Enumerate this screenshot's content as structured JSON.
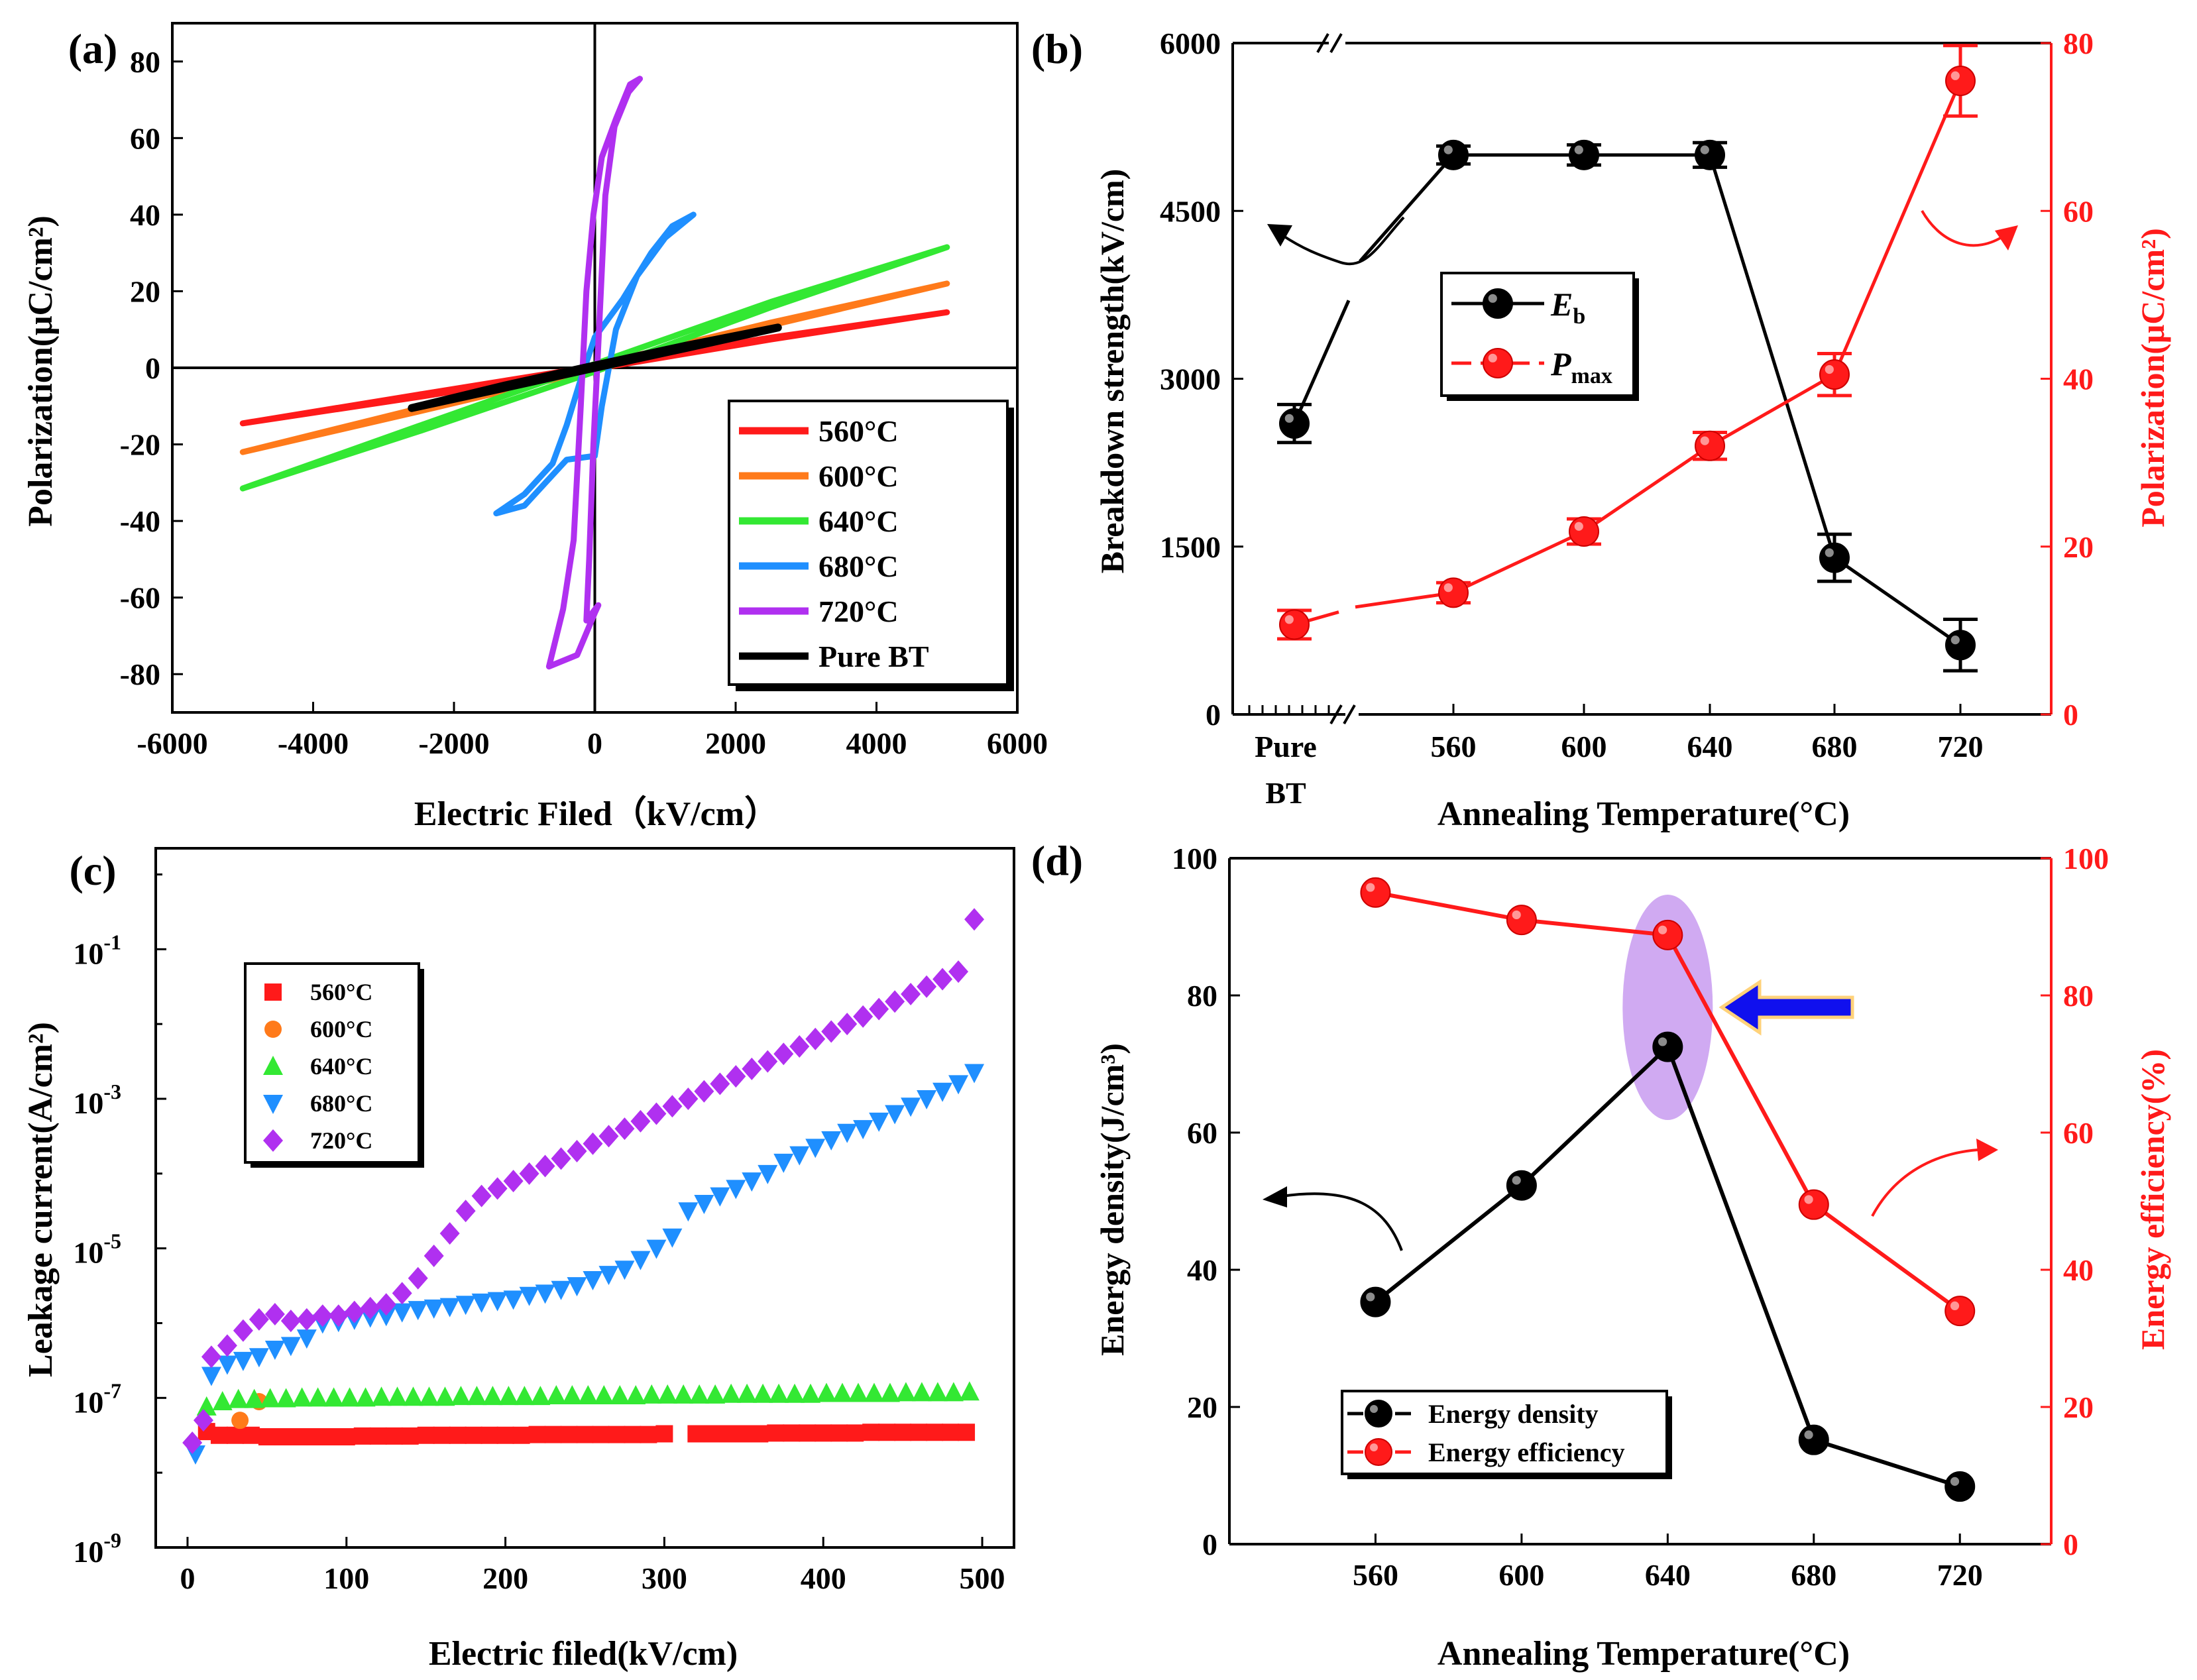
{
  "colors": {
    "black": "#000000",
    "red": "#ff1a1a",
    "orange": "#ff7a1a",
    "green": "#33e833",
    "blue": "#1f8fff",
    "purple": "#b030f0",
    "highlight": "#c89bf0",
    "arrow_blue": "#1010ee"
  },
  "chart_data": [
    {
      "id": "a",
      "type": "line",
      "panel_label": "(a)",
      "xlabel": "Electric Filed（kV/cm）",
      "ylabel": "Polarization(μC/cm²)",
      "xlim": [
        -6000,
        6000
      ],
      "ylim": [
        -90,
        90
      ],
      "x_ticks": [
        -6000,
        -4000,
        -2000,
        0,
        2000,
        4000,
        6000
      ],
      "y_ticks": [
        -80,
        -60,
        -40,
        -20,
        0,
        20,
        40,
        60,
        80
      ],
      "legend": {
        "position": "bottom-right"
      },
      "series": [
        {
          "name": "560°C",
          "color": "#ff1a1a",
          "points": [
            [
              -5000,
              -14.5
            ],
            [
              -2500,
              -7.6
            ],
            [
              0,
              -0.3
            ],
            [
              2500,
              7.4
            ],
            [
              5000,
              14.5
            ],
            [
              2500,
              7.9
            ],
            [
              0,
              0.4
            ],
            [
              -2500,
              -7.0
            ],
            [
              -5000,
              -14.5
            ]
          ]
        },
        {
          "name": "600°C",
          "color": "#ff7a1a",
          "points": [
            [
              -5000,
              -22
            ],
            [
              -2500,
              -11.4
            ],
            [
              0,
              -0.5
            ],
            [
              2500,
              11.1
            ],
            [
              5000,
              22
            ],
            [
              2500,
              11.8
            ],
            [
              0,
              0.6
            ],
            [
              -2500,
              -10.6
            ],
            [
              -5000,
              -22
            ]
          ]
        },
        {
          "name": "640°C",
          "color": "#33e833",
          "points": [
            [
              -5000,
              -31.5
            ],
            [
              -2500,
              -16.6
            ],
            [
              0,
              -1
            ],
            [
              2500,
              15.8
            ],
            [
              5000,
              31.5
            ],
            [
              2500,
              17.2
            ],
            [
              0,
              1
            ],
            [
              -2500,
              -15.2
            ],
            [
              -5000,
              -31.5
            ]
          ]
        },
        {
          "name": "680°C",
          "color": "#1f8fff",
          "points": [
            [
              -1400,
              -38
            ],
            [
              -1000,
              -33
            ],
            [
              -600,
              -25
            ],
            [
              -400,
              -15
            ],
            [
              -200,
              -3
            ],
            [
              0,
              8
            ],
            [
              400,
              18
            ],
            [
              800,
              30
            ],
            [
              1100,
              37
            ],
            [
              1400,
              40
            ],
            [
              1000,
              34
            ],
            [
              600,
              24
            ],
            [
              300,
              10
            ],
            [
              100,
              -10
            ],
            [
              0,
              -23
            ],
            [
              -400,
              -24
            ],
            [
              -700,
              -30
            ],
            [
              -1000,
              -36
            ],
            [
              -1400,
              -38
            ]
          ]
        },
        {
          "name": "720°C",
          "color": "#b030f0",
          "points": [
            [
              -650,
              -78
            ],
            [
              -450,
              -63
            ],
            [
              -300,
              -45
            ],
            [
              -200,
              -10
            ],
            [
              -120,
              20
            ],
            [
              -20,
              40
            ],
            [
              100,
              55
            ],
            [
              300,
              65
            ],
            [
              500,
              74
            ],
            [
              640,
              75.5
            ],
            [
              480,
              72
            ],
            [
              280,
              63
            ],
            [
              150,
              45
            ],
            [
              60,
              10
            ],
            [
              -20,
              -20
            ],
            [
              -80,
              -50
            ],
            [
              -120,
              -66
            ],
            [
              50,
              -62
            ],
            [
              0,
              -64
            ],
            [
              -250,
              -75
            ],
            [
              -650,
              -78
            ]
          ]
        },
        {
          "name": "Pure BT",
          "color": "#000000",
          "points": [
            [
              -2600,
              -10.5
            ],
            [
              -1300,
              -5.3
            ],
            [
              0,
              0
            ],
            [
              1300,
              5.2
            ],
            [
              2600,
              10.5
            ],
            [
              1300,
              5.8
            ],
            [
              0,
              0.6
            ],
            [
              -1300,
              -4.7
            ],
            [
              -2600,
              -10.5
            ]
          ]
        }
      ]
    },
    {
      "id": "b",
      "type": "line",
      "panel_label": "(b)",
      "xlabel": "Annealing Temperature(°C)",
      "ylabel_left": "Breakdown strength(kV/cm)",
      "ylabel_right": "Polarization(μC/cm²)",
      "categories": [
        "Pure BT",
        "560",
        "600",
        "640",
        "680",
        "720"
      ],
      "x_tick_labels": [
        "Pure",
        "BT",
        "560",
        "600",
        "640",
        "680",
        "720"
      ],
      "ylim_left": [
        0,
        6000
      ],
      "ylim_right": [
        0,
        80
      ],
      "y_ticks_left": [
        0,
        1500,
        3000,
        4500,
        6000
      ],
      "y_ticks_right": [
        0,
        20,
        40,
        60,
        80
      ],
      "axis_break": "between Pure BT and 560",
      "legend": {
        "position": "upper-center"
      },
      "series": [
        {
          "name_main": "E",
          "name_sub": "b",
          "axis": "left",
          "color": "#000000",
          "values": [
            2600,
            5000,
            5000,
            5000,
            1400,
            620
          ],
          "errors": [
            170,
            80,
            90,
            110,
            210,
            230
          ]
        },
        {
          "name_main": "P",
          "name_sub": "max",
          "axis": "right",
          "color": "#ff1a1a",
          "values": [
            10.7,
            14.5,
            21.8,
            32,
            40.5,
            75.5
          ],
          "errors": [
            1.7,
            1.2,
            1.5,
            1.6,
            2.5,
            4.2
          ]
        }
      ]
    },
    {
      "id": "c",
      "type": "scatter",
      "panel_label": "(c)",
      "xlabel": "Electric filed(kV/cm)",
      "ylabel": "Leakage current(A/cm²)",
      "xlim": [
        -20,
        520
      ],
      "ylog_range": [
        -9,
        0.35
      ],
      "x_ticks": [
        0,
        100,
        200,
        300,
        400,
        500
      ],
      "y_ticks_log": [
        -9,
        -7,
        -5,
        -3,
        -1
      ],
      "y_tick_labels": [
        "10",
        "10",
        "10",
        "10",
        "10"
      ],
      "y_tick_exponents": [
        "-9",
        "-7",
        "-5",
        "-3",
        "-1"
      ],
      "legend": {
        "position": "upper-left"
      },
      "series": [
        {
          "name": "560°C",
          "color": "#ff1a1a",
          "marker": "square",
          "x": [
            12,
            20,
            30,
            40,
            50,
            60,
            70,
            80,
            90,
            100,
            110,
            120,
            130,
            140,
            150,
            160,
            170,
            180,
            190,
            200,
            210,
            220,
            230,
            240,
            250,
            260,
            270,
            280,
            290,
            300,
            320,
            330,
            340,
            350,
            360,
            370,
            380,
            390,
            400,
            410,
            420,
            430,
            440,
            450,
            460,
            470,
            480,
            490
          ],
          "logy": [
            -7.45,
            -7.5,
            -7.5,
            -7.5,
            -7.52,
            -7.52,
            -7.52,
            -7.52,
            -7.52,
            -7.52,
            -7.51,
            -7.51,
            -7.51,
            -7.51,
            -7.5,
            -7.5,
            -7.5,
            -7.5,
            -7.5,
            -7.5,
            -7.5,
            -7.49,
            -7.49,
            -7.49,
            -7.49,
            -7.49,
            -7.49,
            -7.49,
            -7.49,
            -7.48,
            -7.48,
            -7.48,
            -7.48,
            -7.48,
            -7.48,
            -7.47,
            -7.47,
            -7.47,
            -7.47,
            -7.47,
            -7.47,
            -7.46,
            -7.46,
            -7.46,
            -7.46,
            -7.46,
            -7.46,
            -7.46
          ]
        },
        {
          "name": "600°C",
          "color": "#ff7a1a",
          "marker": "circle",
          "x": [
            33,
            45
          ],
          "logy": [
            -7.3,
            -7.05
          ]
        },
        {
          "name": "640°C",
          "color": "#33e833",
          "marker": "triangle-up",
          "x": [
            12,
            22,
            32,
            42,
            52,
            62,
            72,
            82,
            92,
            102,
            112,
            122,
            132,
            142,
            152,
            162,
            172,
            182,
            192,
            202,
            212,
            222,
            232,
            242,
            252,
            262,
            272,
            282,
            292,
            302,
            312,
            322,
            332,
            342,
            352,
            362,
            372,
            382,
            392,
            402,
            412,
            422,
            432,
            442,
            452,
            462,
            472,
            482,
            492
          ],
          "logy": [
            -7.12,
            -7.05,
            -7.02,
            -7.02,
            -7.01,
            -7.01,
            -7.0,
            -7.0,
            -7.0,
            -7.0,
            -7.0,
            -6.99,
            -6.99,
            -6.99,
            -6.99,
            -6.99,
            -6.98,
            -6.98,
            -6.98,
            -6.98,
            -6.98,
            -6.98,
            -6.97,
            -6.97,
            -6.97,
            -6.97,
            -6.97,
            -6.97,
            -6.96,
            -6.96,
            -6.96,
            -6.96,
            -6.96,
            -6.95,
            -6.95,
            -6.95,
            -6.95,
            -6.95,
            -6.95,
            -6.94,
            -6.94,
            -6.94,
            -6.94,
            -6.94,
            -6.93,
            -6.93,
            -6.93,
            -6.93,
            -6.92
          ]
        },
        {
          "name": "680°C",
          "color": "#1f8fff",
          "marker": "triangle-down",
          "x": [
            5,
            15,
            25,
            35,
            45,
            55,
            65,
            75,
            85,
            95,
            105,
            115,
            125,
            135,
            145,
            155,
            165,
            175,
            185,
            195,
            205,
            215,
            225,
            235,
            245,
            255,
            265,
            275,
            285,
            295,
            305,
            315,
            325,
            335,
            345,
            355,
            365,
            375,
            385,
            395,
            405,
            415,
            425,
            435,
            445,
            455,
            465,
            475,
            485,
            495
          ],
          "logy": [
            -7.75,
            -6.7,
            -6.55,
            -6.5,
            -6.45,
            -6.35,
            -6.3,
            -6.2,
            -6.0,
            -5.98,
            -5.95,
            -5.92,
            -5.9,
            -5.85,
            -5.82,
            -5.8,
            -5.78,
            -5.75,
            -5.72,
            -5.7,
            -5.68,
            -5.63,
            -5.6,
            -5.55,
            -5.5,
            -5.42,
            -5.35,
            -5.28,
            -5.15,
            -5.0,
            -4.85,
            -4.5,
            -4.4,
            -4.3,
            -4.2,
            -4.1,
            -4.0,
            -3.85,
            -3.75,
            -3.65,
            -3.55,
            -3.45,
            -3.4,
            -3.3,
            -3.2,
            -3.1,
            -3.0,
            -2.9,
            -2.8,
            -2.65
          ]
        },
        {
          "name": "720°C",
          "color": "#b030f0",
          "marker": "diamond",
          "x": [
            3,
            10,
            15,
            25,
            35,
            45,
            55,
            65,
            75,
            85,
            95,
            105,
            115,
            125,
            135,
            145,
            155,
            165,
            175,
            185,
            195,
            205,
            215,
            225,
            235,
            245,
            255,
            265,
            275,
            285,
            295,
            305,
            315,
            325,
            335,
            345,
            355,
            365,
            375,
            385,
            395,
            405,
            415,
            425,
            435,
            445,
            455,
            465,
            475,
            485,
            495
          ],
          "logy": [
            -7.6,
            -7.3,
            -6.45,
            -6.3,
            -6.1,
            -5.95,
            -5.88,
            -5.97,
            -5.95,
            -5.9,
            -5.9,
            -5.85,
            -5.8,
            -5.75,
            -5.6,
            -5.4,
            -5.1,
            -4.8,
            -4.5,
            -4.3,
            -4.2,
            -4.1,
            -4.0,
            -3.9,
            -3.8,
            -3.7,
            -3.6,
            -3.5,
            -3.4,
            -3.3,
            -3.2,
            -3.1,
            -3.0,
            -2.9,
            -2.8,
            -2.7,
            -2.6,
            -2.5,
            -2.4,
            -2.3,
            -2.2,
            -2.1,
            -2.0,
            -1.9,
            -1.8,
            -1.7,
            -1.6,
            -1.5,
            -1.4,
            -1.3,
            -0.6
          ]
        }
      ]
    },
    {
      "id": "d",
      "type": "line",
      "panel_label": "(d)",
      "xlabel": "Annealing Temperature(°C)",
      "ylabel_left": "Energy density(J/cm³)",
      "ylabel_right": "Energy efficiency(%)",
      "x": [
        560,
        600,
        640,
        680,
        720
      ],
      "xlim": [
        520,
        745
      ],
      "x_ticks": [
        560,
        600,
        640,
        680,
        720
      ],
      "ylim_left": [
        0,
        100
      ],
      "ylim_right": [
        0,
        100
      ],
      "y_ticks_left": [
        0,
        20,
        40,
        60,
        80,
        100
      ],
      "y_ticks_right": [
        0,
        20,
        40,
        60,
        80,
        100
      ],
      "legend": {
        "position": "bottom-left"
      },
      "series": [
        {
          "name": "Energy density",
          "axis": "left",
          "color": "#000000",
          "values": [
            35.3,
            52.3,
            72.5,
            15.2,
            8.4
          ]
        },
        {
          "name": "Energy efficiency",
          "axis": "right",
          "color": "#ff1a1a",
          "values": [
            95,
            91,
            88.8,
            49.5,
            34
          ]
        }
      ],
      "highlight_x": 640
    }
  ]
}
